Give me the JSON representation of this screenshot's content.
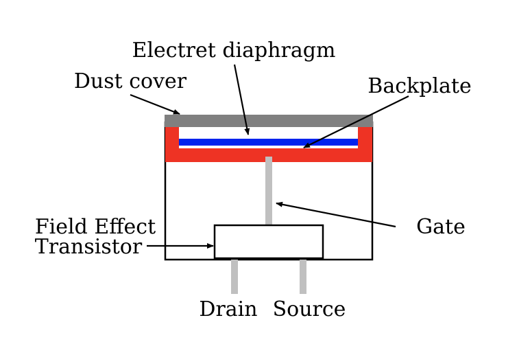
{
  "labels": {
    "electret_diaphragm": "Electret diaphragm",
    "dust_cover": "Dust cover",
    "backplate": "Backplate",
    "field_effect": "Field Effect",
    "transistor": "Transistor",
    "gate": "Gate",
    "drain": "Drain",
    "source": "Source"
  },
  "colors": {
    "dust_cover": "#808080",
    "backplate": "#ee3324",
    "diaphragm": "#0022ee",
    "pins": "#c0c0c0",
    "outline": "#000000",
    "background": "#ffffff"
  }
}
